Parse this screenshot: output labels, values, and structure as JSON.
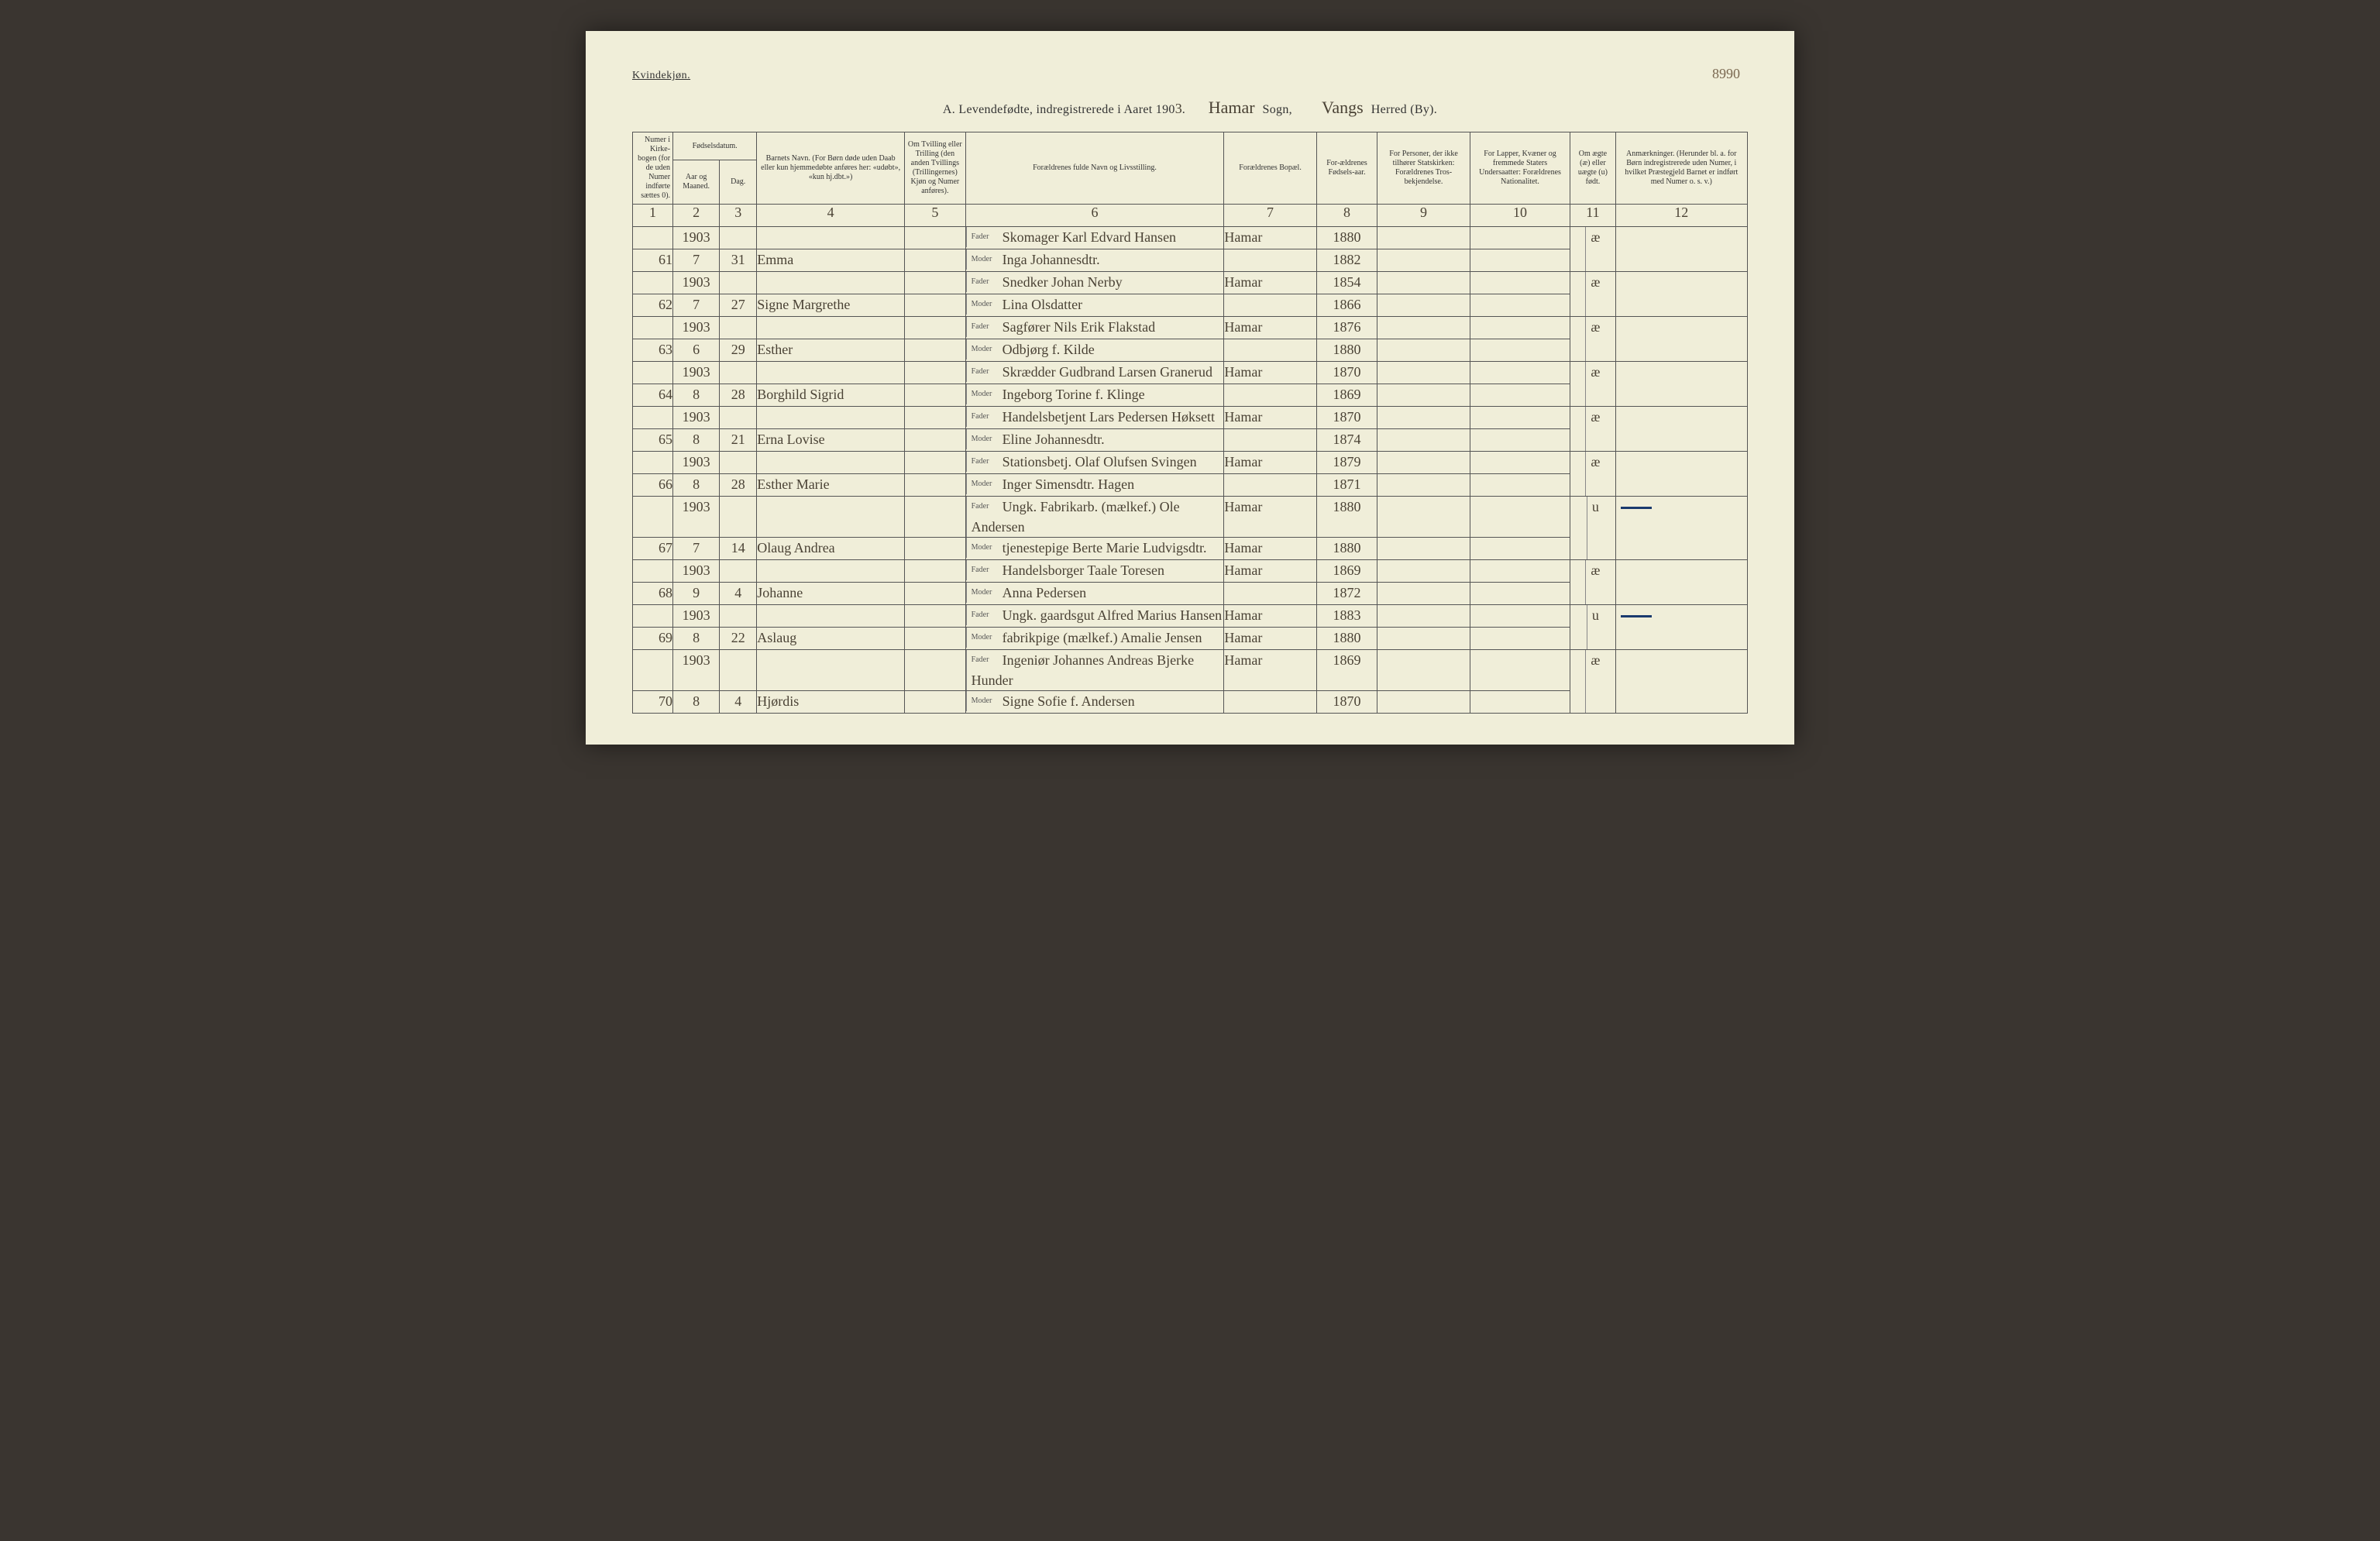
{
  "page_number": "8990",
  "gender_heading": "Kvindekjøn.",
  "title": {
    "prefix": "A.  Levendefødte, indregistrerede i Aaret 190",
    "year_last_digit": "3",
    "sogn_value": "Hamar",
    "sogn_label": "Sogn,",
    "herred_value": "Vangs",
    "herred_label": "Herred (By)."
  },
  "headers": {
    "col1": "Numer i Kirke-bogen (for de uden Numer indførte sættes 0).",
    "col2_group": "Fødselsdatum.",
    "col2a": "Aar og Maaned.",
    "col2b": "Dag.",
    "col4": "Barnets Navn.\n(For Børn døde uden Daab eller kun hjemmedøbte anføres her: «udøbt», «kun hj.dbt.»)",
    "col5": "Om Tvilling eller Trilling (den anden Tvillings (Trillingernes) Kjøn og Numer anføres).",
    "col6": "Forældrenes fulde Navn og Livsstilling.",
    "col7": "Forældrenes Bopæl.",
    "col8": "For-ældrenes Fødsels-aar.",
    "col9": "For Personer, der ikke tilhører Statskirken: Forældrenes Tros-bekjendelse.",
    "col10": "For Lapper, Kvæner og fremmede Staters Undersaatter: Forældrenes Nationalitet.",
    "col11": "Om ægte (æ) eller uægte (u) født.",
    "col12": "Anmærkninger.\n(Herunder bl. a. for Børn indregistrerede uden Numer, i hvilket Præstegjeld Barnet er indført med Numer o. s. v.)"
  },
  "col_numbers": [
    "1",
    "2",
    "3",
    "4",
    "5",
    "6",
    "7",
    "8",
    "9",
    "10",
    "11",
    "12"
  ],
  "fader_label": "Fader",
  "moder_label": "Moder",
  "rows": [
    {
      "num": "61",
      "year": "1903",
      "month": "7",
      "day": "31",
      "child": "Emma",
      "fader": "Skomager Karl Edvard Hansen",
      "moder": "Inga Johannesdtr.",
      "bopel": "Hamar",
      "faar": "1880",
      "maar": "1882",
      "aegte": "æ",
      "anm_dash": false
    },
    {
      "num": "62",
      "year": "1903",
      "month": "7",
      "day": "27",
      "child": "Signe Margrethe",
      "fader": "Snedker Johan Nerby",
      "moder": "Lina Olsdatter",
      "bopel": "Hamar",
      "faar": "1854",
      "maar": "1866",
      "aegte": "æ",
      "anm_dash": false
    },
    {
      "num": "63",
      "year": "1903",
      "month": "6",
      "day": "29",
      "child": "Esther",
      "fader": "Sagfører Nils Erik Flakstad",
      "moder": "Odbjørg f. Kilde",
      "bopel": "Hamar",
      "faar": "1876",
      "maar": "1880",
      "aegte": "æ",
      "anm_dash": false
    },
    {
      "num": "64",
      "year": "1903",
      "month": "8",
      "day": "28",
      "child": "Borghild Sigrid",
      "fader": "Skrædder Gudbrand Larsen Granerud",
      "moder": "Ingeborg Torine f. Klinge",
      "bopel": "Hamar",
      "faar": "1870",
      "maar": "1869",
      "aegte": "æ",
      "anm_dash": false
    },
    {
      "num": "65",
      "year": "1903",
      "month": "8",
      "day": "21",
      "child": "Erna Lovise",
      "fader": "Handelsbetjent Lars Pedersen Høksett",
      "moder": "Eline Johannesdtr.",
      "bopel": "Hamar",
      "faar": "1870",
      "maar": "1874",
      "aegte": "æ",
      "anm_dash": false
    },
    {
      "num": "66",
      "year": "1903",
      "month": "8",
      "day": "28",
      "child": "Esther Marie",
      "fader": "Stationsbetj. Olaf Olufsen Svingen",
      "moder": "Inger Simensdtr. Hagen",
      "bopel": "Hamar",
      "faar": "1879",
      "maar": "1871",
      "aegte": "æ",
      "anm_dash": false
    },
    {
      "num": "67",
      "year": "1903",
      "month": "7",
      "day": "14",
      "child": "Olaug Andrea",
      "fader": "Ungk. Fabrikarb. (mælkef.) Ole Andersen",
      "moder": "tjenestepige Berte Marie Ludvigsdtr.",
      "bopel": "Hamar",
      "bopel2": "Hamar",
      "faar": "1880",
      "maar": "1880",
      "aegte": "u",
      "anm_dash": true
    },
    {
      "num": "68",
      "year": "1903",
      "month": "9",
      "day": "4",
      "child": "Johanne",
      "fader": "Handelsborger Taale Toresen",
      "moder": "Anna Pedersen",
      "bopel": "Hamar",
      "faar": "1869",
      "maar": "1872",
      "aegte": "æ",
      "anm_dash": false
    },
    {
      "num": "69",
      "year": "1903",
      "month": "8",
      "day": "22",
      "child": "Aslaug",
      "fader": "Ungk. gaardsgut Alfred Marius Hansen",
      "moder": "fabrikpige (mælkef.) Amalie Jensen",
      "bopel": "Hamar",
      "bopel2": "Hamar",
      "faar": "1883",
      "maar": "1880",
      "aegte": "u",
      "anm_dash": true
    },
    {
      "num": "70",
      "year": "1903",
      "month": "8",
      "day": "4",
      "child": "Hjørdis",
      "fader": "Ingeniør Johannes Andreas Bjerke Hunder",
      "moder": "Signe Sofie f. Andersen",
      "bopel": "Hamar",
      "faar": "1869",
      "maar": "1870",
      "aegte": "æ",
      "anm_dash": false
    }
  ]
}
